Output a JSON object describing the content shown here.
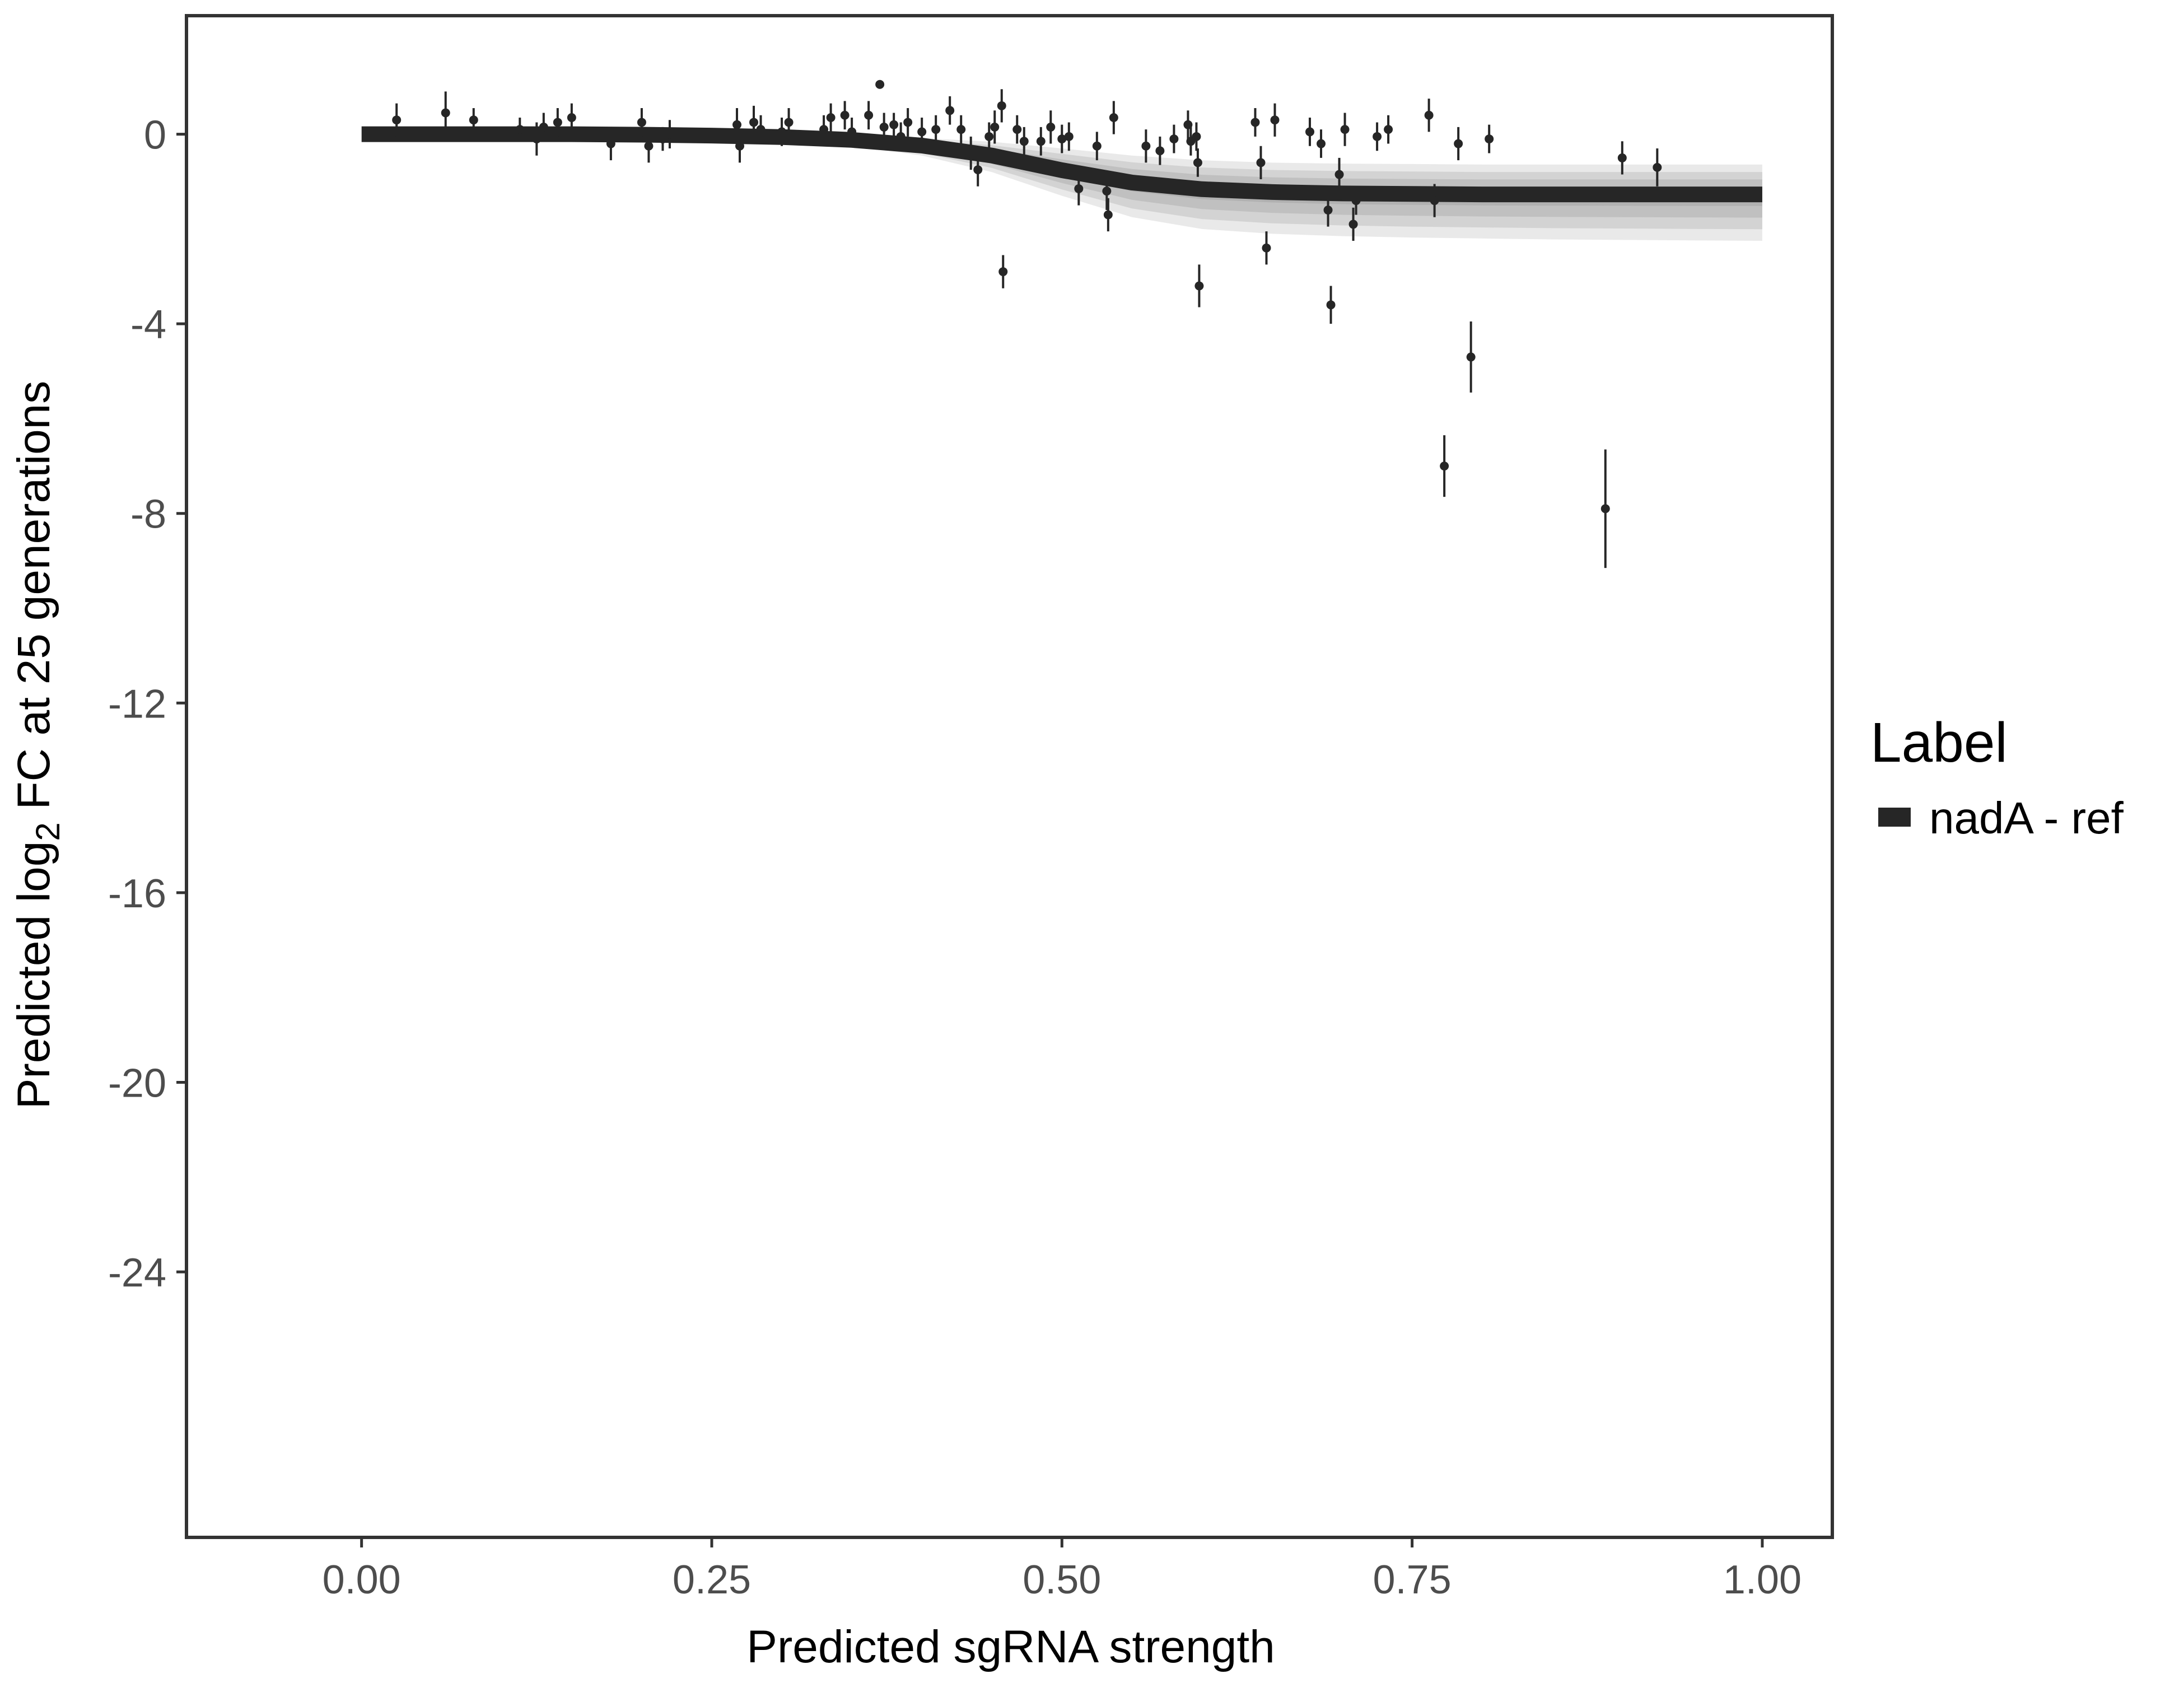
{
  "chart_data": {
    "type": "scatter",
    "title": "",
    "xlabel": "Predicted sgRNA strength",
    "ylabel": {
      "prefix": "Predicted  log",
      "subscript": "2",
      "suffix": " FC at 25 generations"
    },
    "xlim": [
      -0.125,
      1.05
    ],
    "ylim": [
      -29.6,
      2.5
    ],
    "x_ticks": [
      0.0,
      0.25,
      0.5,
      0.75,
      1.0
    ],
    "x_tick_labels": [
      "0.00",
      "0.25",
      "0.50",
      "0.75",
      "1.00"
    ],
    "y_ticks": [
      0,
      -4,
      -8,
      -12,
      -16,
      -20,
      -24
    ],
    "y_tick_labels": [
      "0",
      "-4",
      "-8",
      "-12",
      "-16",
      "-20",
      "-24"
    ],
    "grid": false,
    "legend": {
      "title": "Label",
      "position": "right",
      "entries": [
        {
          "label": "nadA - ref",
          "color": "#262626"
        }
      ]
    },
    "colors": {
      "fit": "#262626",
      "band": "#999999",
      "points": "#262626",
      "panel_border": "#333333",
      "tick_text": "#4d4d4d"
    },
    "fit_curve": {
      "name": "nadA - ref",
      "x": [
        0.0,
        0.05,
        0.1,
        0.15,
        0.2,
        0.25,
        0.3,
        0.35,
        0.4,
        0.45,
        0.5,
        0.55,
        0.6,
        0.65,
        0.7,
        0.75,
        0.8,
        0.85,
        0.9,
        0.95,
        1.0
      ],
      "y": [
        0.0,
        0.0,
        0.0,
        0.0,
        -0.01,
        -0.03,
        -0.06,
        -0.12,
        -0.24,
        -0.45,
        -0.76,
        -1.02,
        -1.16,
        -1.22,
        -1.25,
        -1.26,
        -1.27,
        -1.27,
        -1.27,
        -1.27,
        -1.27
      ],
      "band_lower": [
        0.0,
        0.0,
        0.0,
        0.0,
        -0.03,
        -0.07,
        -0.13,
        -0.25,
        -0.45,
        -0.8,
        -1.3,
        -1.75,
        -2.0,
        -2.1,
        -2.15,
        -2.18,
        -2.2,
        -2.22,
        -2.23,
        -2.24,
        -2.25
      ],
      "band_upper": [
        0.0,
        0.0,
        0.0,
        0.0,
        0.0,
        0.0,
        -0.02,
        -0.04,
        -0.08,
        -0.16,
        -0.3,
        -0.45,
        -0.55,
        -0.6,
        -0.62,
        -0.63,
        -0.64,
        -0.64,
        -0.64,
        -0.64,
        -0.64
      ]
    },
    "points": [
      {
        "x": 0.025,
        "y": 0.3,
        "err": 0.35
      },
      {
        "x": 0.06,
        "y": 0.45,
        "err": 0.45
      },
      {
        "x": 0.08,
        "y": 0.3,
        "err": 0.25
      },
      {
        "x": 0.113,
        "y": 0.1,
        "err": 0.25
      },
      {
        "x": 0.125,
        "y": -0.1,
        "err": 0.35
      },
      {
        "x": 0.13,
        "y": 0.15,
        "err": 0.3
      },
      {
        "x": 0.14,
        "y": 0.25,
        "err": 0.3
      },
      {
        "x": 0.15,
        "y": 0.35,
        "err": 0.3
      },
      {
        "x": 0.178,
        "y": -0.2,
        "err": 0.35
      },
      {
        "x": 0.2,
        "y": 0.25,
        "err": 0.3
      },
      {
        "x": 0.205,
        "y": -0.25,
        "err": 0.35
      },
      {
        "x": 0.215,
        "y": -0.1,
        "err": 0.25
      },
      {
        "x": 0.22,
        "y": 0.0,
        "err": 0.3
      },
      {
        "x": 0.268,
        "y": 0.2,
        "err": 0.35
      },
      {
        "x": 0.27,
        "y": -0.25,
        "err": 0.35
      },
      {
        "x": 0.28,
        "y": 0.25,
        "err": 0.35
      },
      {
        "x": 0.285,
        "y": 0.1,
        "err": 0.3
      },
      {
        "x": 0.3,
        "y": 0.05,
        "err": 0.3
      },
      {
        "x": 0.305,
        "y": 0.25,
        "err": 0.3
      },
      {
        "x": 0.33,
        "y": 0.1,
        "err": 0.3
      },
      {
        "x": 0.335,
        "y": 0.35,
        "err": 0.3
      },
      {
        "x": 0.345,
        "y": 0.4,
        "err": 0.3
      },
      {
        "x": 0.35,
        "y": 0.05,
        "err": 0.3
      },
      {
        "x": 0.362,
        "y": 0.4,
        "err": 0.3
      },
      {
        "x": 0.37,
        "y": 1.05,
        "err": 0.0
      },
      {
        "x": 0.373,
        "y": 0.15,
        "err": 0.3
      },
      {
        "x": 0.38,
        "y": 0.2,
        "err": 0.25
      },
      {
        "x": 0.385,
        "y": -0.05,
        "err": 0.3
      },
      {
        "x": 0.39,
        "y": 0.25,
        "err": 0.3
      },
      {
        "x": 0.4,
        "y": 0.05,
        "err": 0.3
      },
      {
        "x": 0.41,
        "y": 0.1,
        "err": 0.3
      },
      {
        "x": 0.42,
        "y": 0.5,
        "err": 0.3
      },
      {
        "x": 0.428,
        "y": 0.1,
        "err": 0.3
      },
      {
        "x": 0.435,
        "y": -0.4,
        "err": 0.35
      },
      {
        "x": 0.44,
        "y": -0.75,
        "err": 0.35
      },
      {
        "x": 0.448,
        "y": -0.05,
        "err": 0.3
      },
      {
        "x": 0.452,
        "y": 0.15,
        "err": 0.35
      },
      {
        "x": 0.457,
        "y": 0.6,
        "err": 0.35
      },
      {
        "x": 0.458,
        "y": -2.9,
        "err": 0.35
      },
      {
        "x": 0.468,
        "y": 0.1,
        "err": 0.3
      },
      {
        "x": 0.473,
        "y": -0.15,
        "err": 0.3
      },
      {
        "x": 0.485,
        "y": -0.15,
        "err": 0.3
      },
      {
        "x": 0.492,
        "y": 0.15,
        "err": 0.35
      },
      {
        "x": 0.5,
        "y": -0.1,
        "err": 0.3
      },
      {
        "x": 0.505,
        "y": -0.05,
        "err": 0.3
      },
      {
        "x": 0.512,
        "y": -1.15,
        "err": 0.35
      },
      {
        "x": 0.525,
        "y": -0.25,
        "err": 0.3
      },
      {
        "x": 0.532,
        "y": -1.2,
        "err": 0.4
      },
      {
        "x": 0.533,
        "y": -1.7,
        "err": 0.35
      },
      {
        "x": 0.537,
        "y": 0.35,
        "err": 0.35
      },
      {
        "x": 0.56,
        "y": -0.25,
        "err": 0.35
      },
      {
        "x": 0.57,
        "y": -0.35,
        "err": 0.3
      },
      {
        "x": 0.58,
        "y": -0.1,
        "err": 0.3
      },
      {
        "x": 0.59,
        "y": 0.2,
        "err": 0.3
      },
      {
        "x": 0.592,
        "y": -0.15,
        "err": 0.3
      },
      {
        "x": 0.596,
        "y": -0.05,
        "err": 0.3
      },
      {
        "x": 0.597,
        "y": -0.6,
        "err": 0.3
      },
      {
        "x": 0.598,
        "y": -3.2,
        "err": 0.45
      },
      {
        "x": 0.638,
        "y": 0.25,
        "err": 0.3
      },
      {
        "x": 0.642,
        "y": -0.6,
        "err": 0.35
      },
      {
        "x": 0.646,
        "y": -2.4,
        "err": 0.35
      },
      {
        "x": 0.652,
        "y": 0.3,
        "err": 0.35
      },
      {
        "x": 0.677,
        "y": 0.05,
        "err": 0.3
      },
      {
        "x": 0.685,
        "y": -0.2,
        "err": 0.3
      },
      {
        "x": 0.69,
        "y": -1.6,
        "err": 0.35
      },
      {
        "x": 0.692,
        "y": -3.6,
        "err": 0.4
      },
      {
        "x": 0.698,
        "y": -0.85,
        "err": 0.35
      },
      {
        "x": 0.702,
        "y": 0.1,
        "err": 0.35
      },
      {
        "x": 0.708,
        "y": -1.9,
        "err": 0.35
      },
      {
        "x": 0.71,
        "y": -1.4,
        "err": 0.3
      },
      {
        "x": 0.725,
        "y": -0.05,
        "err": 0.3
      },
      {
        "x": 0.733,
        "y": 0.1,
        "err": 0.3
      },
      {
        "x": 0.762,
        "y": 0.4,
        "err": 0.35
      },
      {
        "x": 0.766,
        "y": -1.4,
        "err": 0.35
      },
      {
        "x": 0.773,
        "y": -7.0,
        "err": 0.65
      },
      {
        "x": 0.783,
        "y": -0.2,
        "err": 0.35
      },
      {
        "x": 0.792,
        "y": -4.7,
        "err": 0.75
      },
      {
        "x": 0.805,
        "y": -0.1,
        "err": 0.3
      },
      {
        "x": 0.888,
        "y": -7.9,
        "err": 1.25
      },
      {
        "x": 0.9,
        "y": -0.5,
        "err": 0.35
      },
      {
        "x": 0.925,
        "y": -0.7,
        "err": 0.4
      }
    ]
  }
}
